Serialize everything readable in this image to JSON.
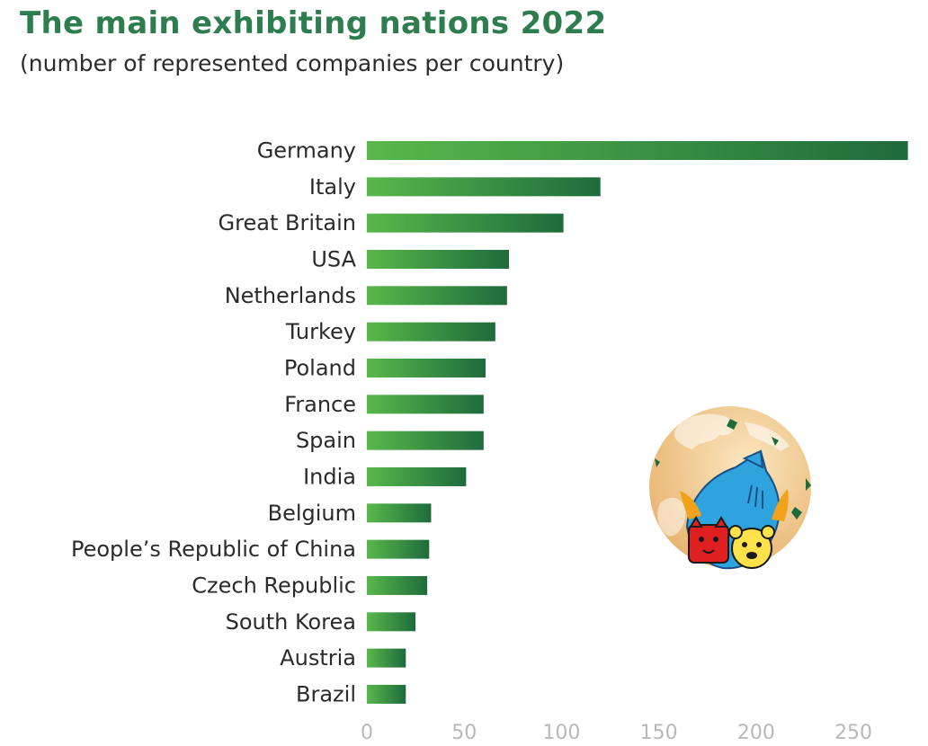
{
  "title": "The main exhibiting nations 2022",
  "subtitle": "(number of represented companies per country)",
  "colors": {
    "title": "#2e7d4f",
    "bar_light": "#58b84a",
    "bar_dark": "#1f6b3c",
    "axis_text": "#b8b8b8"
  },
  "chart_data": {
    "type": "bar",
    "orientation": "horizontal",
    "title": "The main exhibiting nations 2022",
    "subtitle": "(number of represented companies per country)",
    "xlabel": "",
    "ylabel": "",
    "xlim": [
      0,
      280
    ],
    "xticks": [
      0,
      50,
      100,
      150,
      200,
      250
    ],
    "grid": false,
    "categories": [
      "Germany",
      "Italy",
      "Great Britain",
      "USA",
      "Netherlands",
      "Turkey",
      "Poland",
      "France",
      "Spain",
      "India",
      "Belgium",
      "People’s Republic of China",
      "Czech Republic",
      "South Korea",
      "Austria",
      "Brazil"
    ],
    "values": [
      278,
      120,
      101,
      73,
      72,
      66,
      61,
      60,
      60,
      51,
      33,
      32,
      31,
      25,
      20,
      20
    ]
  },
  "logo": {
    "icon": "globe-pets-logo-icon"
  }
}
